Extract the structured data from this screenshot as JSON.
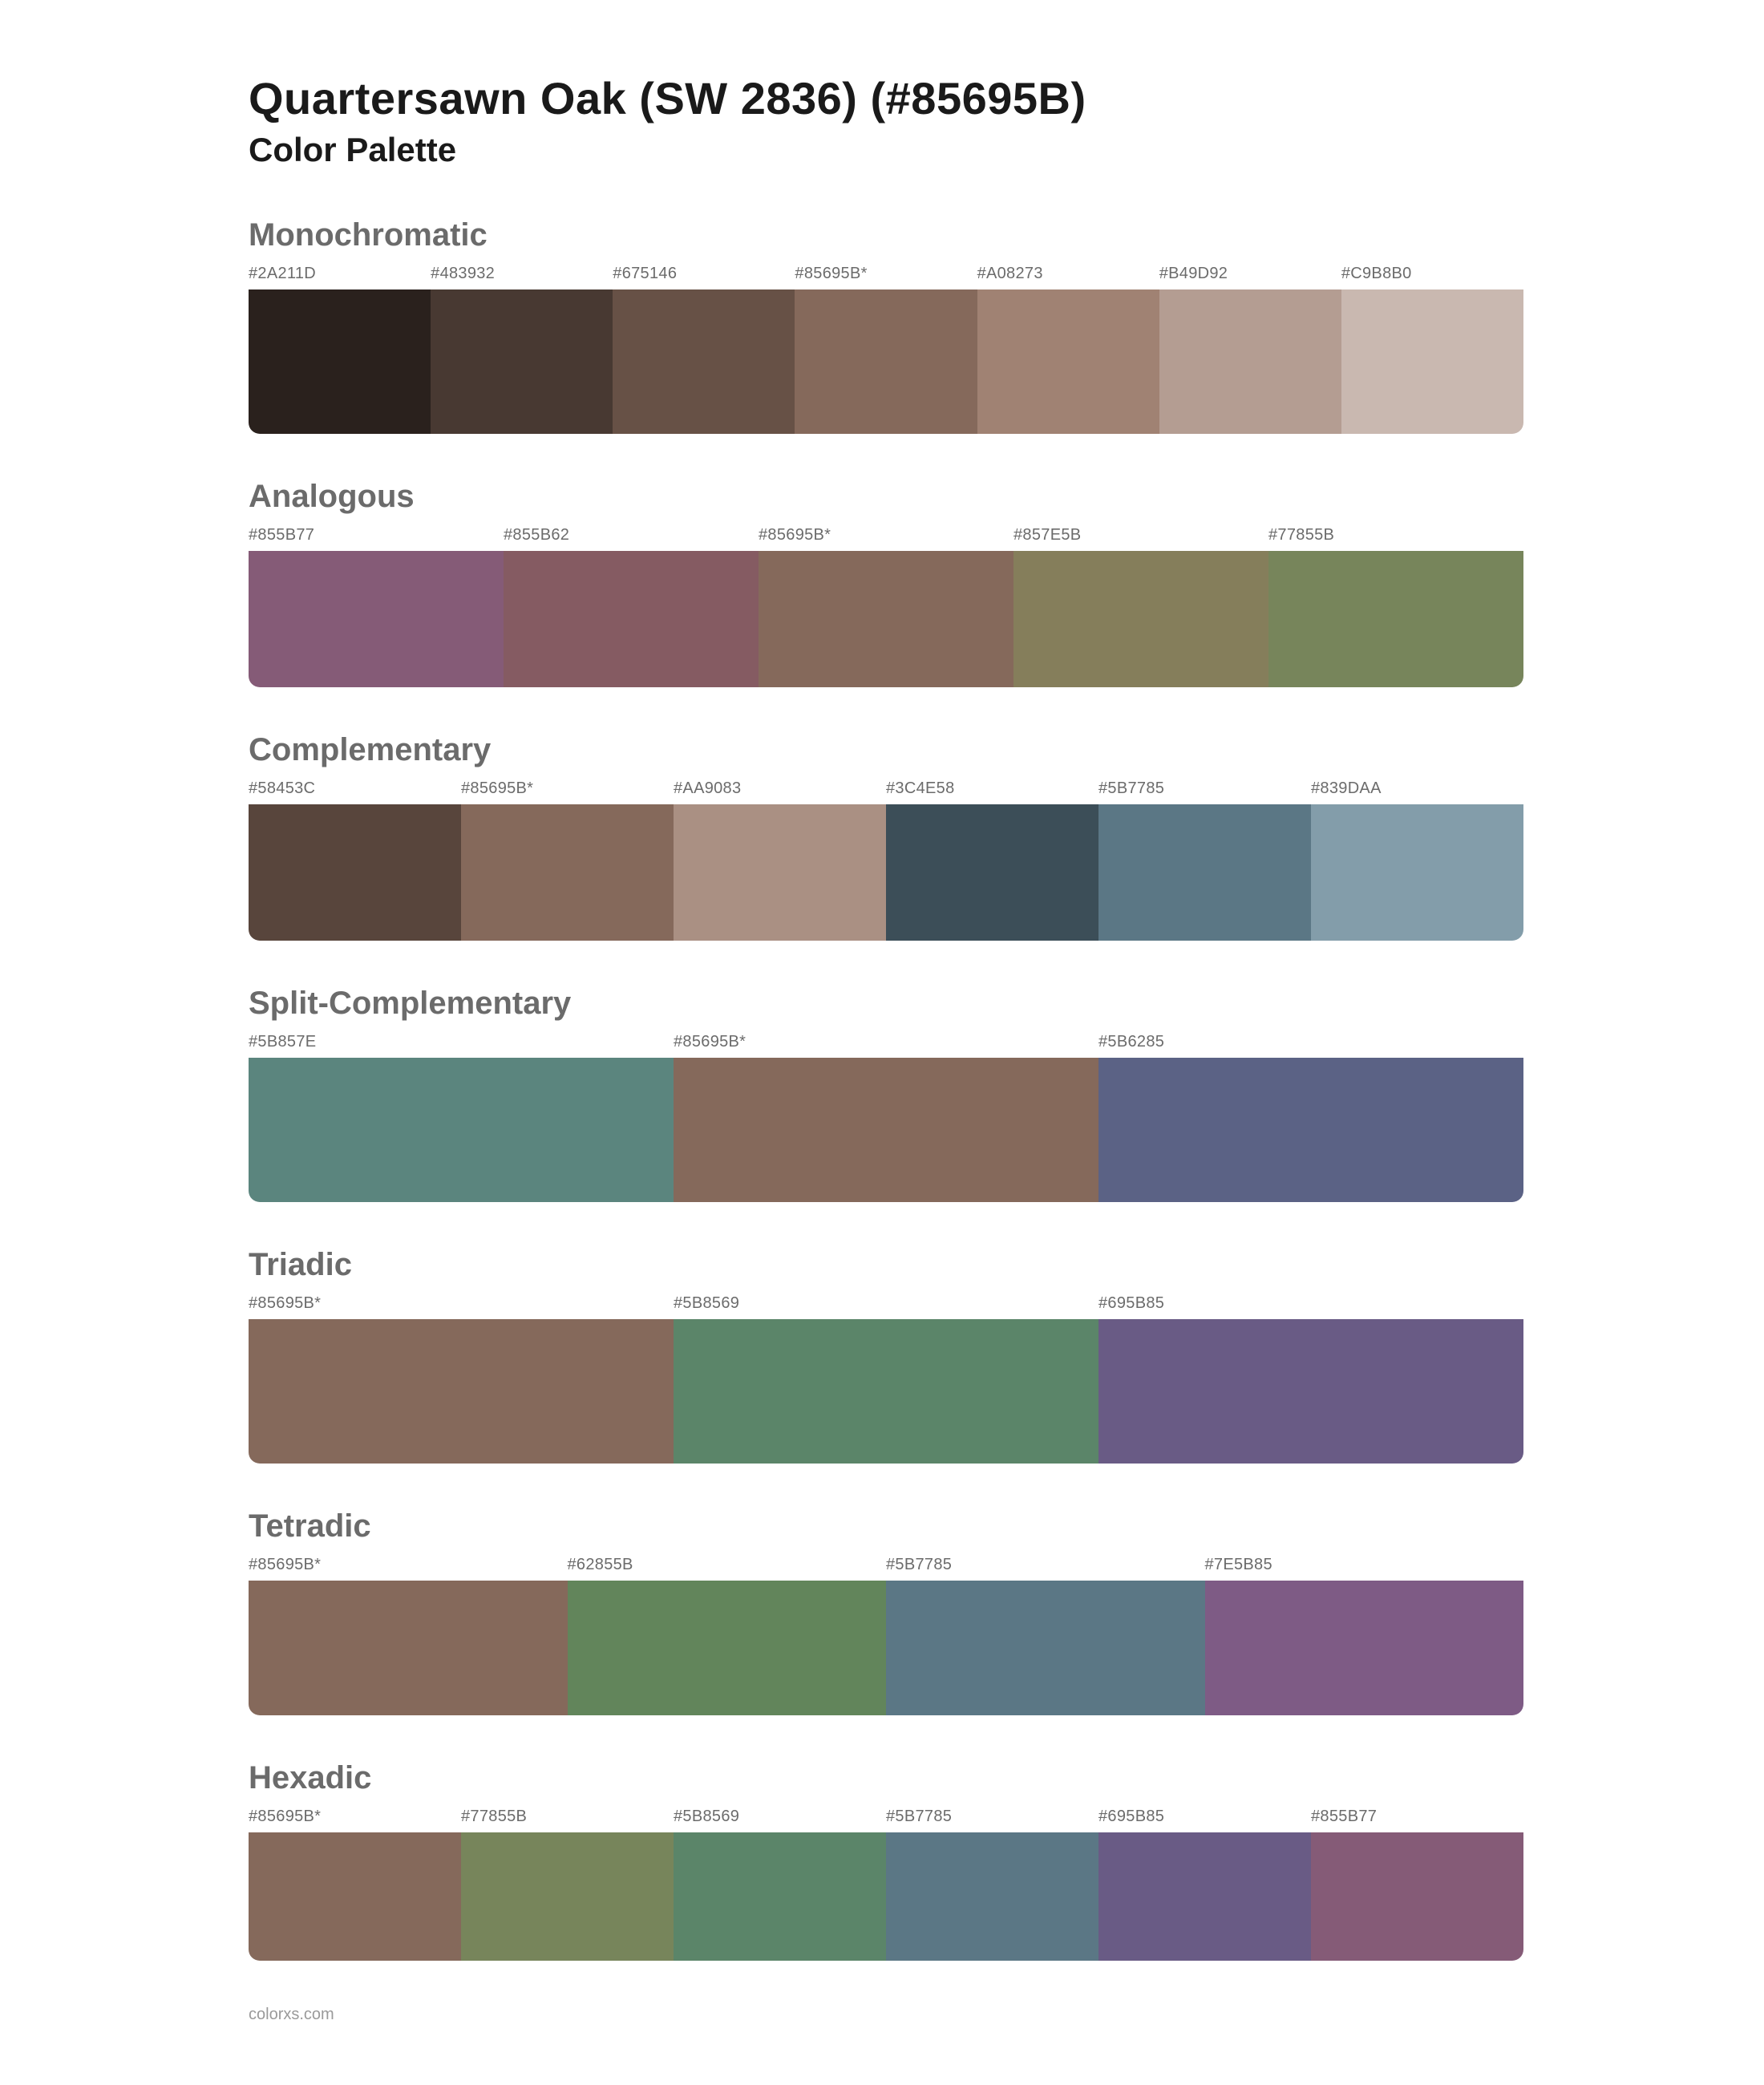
{
  "title": "Quartersawn Oak (SW 2836) (#85695B)",
  "subtitle": "Color Palette",
  "footer": "colorxs.com",
  "section_title_color": "#6b6b6b",
  "label_color": "#6b6b6b",
  "background_color": "#ffffff",
  "sections": [
    {
      "name": "Monochromatic",
      "block_height": 180,
      "swatches": [
        {
          "label": "#2A211D",
          "color": "#2A211D"
        },
        {
          "label": "#483932",
          "color": "#483932"
        },
        {
          "label": "#675146",
          "color": "#675146"
        },
        {
          "label": "#85695B*",
          "color": "#85695B"
        },
        {
          "label": "#A08273",
          "color": "#A08273"
        },
        {
          "label": "#B49D92",
          "color": "#B49D92"
        },
        {
          "label": "#C9B8B0",
          "color": "#C9B8B0"
        }
      ]
    },
    {
      "name": "Analogous",
      "block_height": 170,
      "swatches": [
        {
          "label": "#855B77",
          "color": "#855B77"
        },
        {
          "label": "#855B62",
          "color": "#855B62"
        },
        {
          "label": "#85695B*",
          "color": "#85695B"
        },
        {
          "label": "#857E5B",
          "color": "#857E5B"
        },
        {
          "label": "#77855B",
          "color": "#77855B"
        }
      ]
    },
    {
      "name": "Complementary",
      "block_height": 170,
      "swatches": [
        {
          "label": "#58453C",
          "color": "#58453C"
        },
        {
          "label": "#85695B*",
          "color": "#85695B"
        },
        {
          "label": "#AA9083",
          "color": "#AA9083"
        },
        {
          "label": "#3C4E58",
          "color": "#3C4E58"
        },
        {
          "label": "#5B7785",
          "color": "#5B7785"
        },
        {
          "label": "#839DAA",
          "color": "#839DAA"
        }
      ]
    },
    {
      "name": "Split-Complementary",
      "block_height": 180,
      "swatches": [
        {
          "label": "#5B857E",
          "color": "#5B857E"
        },
        {
          "label": "#85695B*",
          "color": "#85695B"
        },
        {
          "label": "#5B6285",
          "color": "#5B6285"
        }
      ]
    },
    {
      "name": "Triadic",
      "block_height": 180,
      "swatches": [
        {
          "label": "#85695B*",
          "color": "#85695B"
        },
        {
          "label": "#5B8569",
          "color": "#5B8569"
        },
        {
          "label": "#695B85",
          "color": "#695B85"
        }
      ]
    },
    {
      "name": "Tetradic",
      "block_height": 168,
      "swatches": [
        {
          "label": "#85695B*",
          "color": "#85695B"
        },
        {
          "label": "#62855B",
          "color": "#62855B"
        },
        {
          "label": "#5B7785",
          "color": "#5B7785"
        },
        {
          "label": "#7E5B85",
          "color": "#7E5B85"
        }
      ]
    },
    {
      "name": "Hexadic",
      "block_height": 160,
      "swatches": [
        {
          "label": "#85695B*",
          "color": "#85695B"
        },
        {
          "label": "#77855B",
          "color": "#77855B"
        },
        {
          "label": "#5B8569",
          "color": "#5B8569"
        },
        {
          "label": "#5B7785",
          "color": "#5B7785"
        },
        {
          "label": "#695B85",
          "color": "#695B85"
        },
        {
          "label": "#855B77",
          "color": "#855B77"
        }
      ]
    }
  ]
}
